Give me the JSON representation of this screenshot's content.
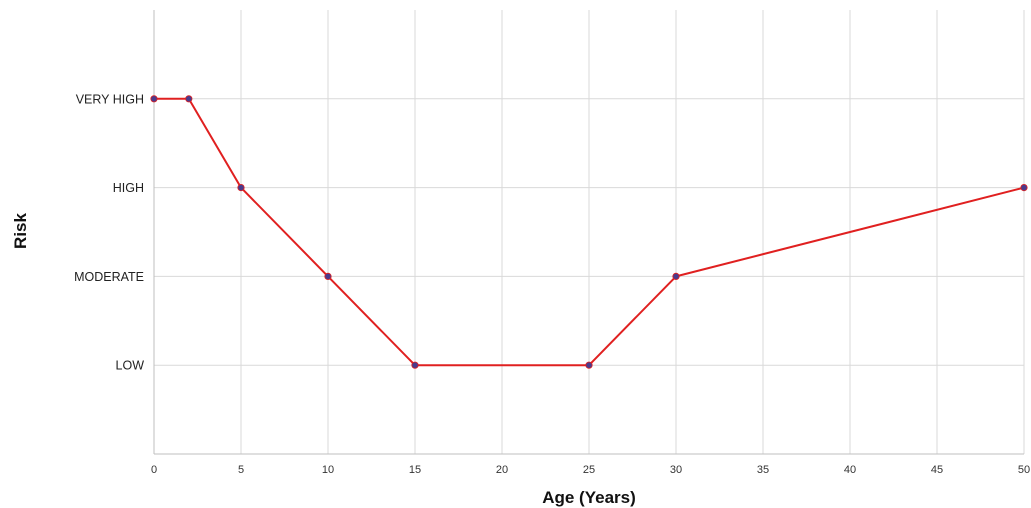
{
  "chart_data": {
    "type": "line",
    "title": "",
    "xlabel": "Age (Years)",
    "ylabel": "Risk",
    "x_ticks": [
      0,
      5,
      10,
      15,
      20,
      25,
      30,
      35,
      40,
      45,
      50
    ],
    "x_tick_labels": [
      "0",
      "5",
      "10",
      "15",
      "20",
      "25",
      "30",
      "35",
      "40",
      "45",
      "50"
    ],
    "xlim": [
      0,
      50
    ],
    "y_categories": [
      "LOW",
      "MODERATE",
      "HIGH",
      "VERY HIGH"
    ],
    "ylim": [
      0,
      5
    ],
    "grid": true,
    "line_color": "#e02020",
    "marker_color": "#4b3a8c",
    "series": [
      {
        "x": [
          0,
          2,
          5,
          10,
          15,
          25,
          30,
          50
        ],
        "y": [
          "VERY HIGH",
          "VERY HIGH",
          "HIGH",
          "MODERATE",
          "LOW",
          "LOW",
          "MODERATE",
          "HIGH"
        ]
      }
    ]
  }
}
